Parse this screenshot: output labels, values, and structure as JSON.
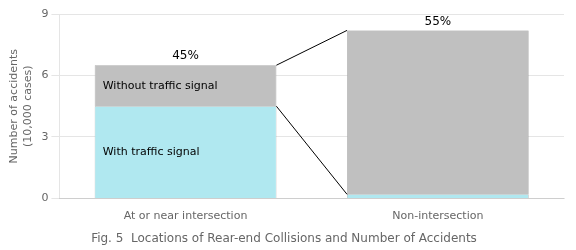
{
  "chart_data": {
    "type": "bar",
    "stacked": true,
    "title": "Fig. 5  Locations of Rear-end Collisions and Number of Accidents",
    "ylabel": [
      "Number of accidents",
      "(10,000 cases)"
    ],
    "categories": [
      "At or near intersection",
      "Non-intersection"
    ],
    "series": [
      {
        "name": "With traffic signal",
        "color": "#b0e8f0",
        "values": [
          4.5,
          0.2
        ]
      },
      {
        "name": "Without traffic signal",
        "color": "#c0c0c0",
        "values": [
          2.0,
          8.0
        ]
      }
    ],
    "annotations": [
      "45%",
      "55%"
    ],
    "ylim": [
      0,
      9
    ],
    "yticks": [
      0,
      3,
      6,
      9
    ],
    "grid": true
  }
}
